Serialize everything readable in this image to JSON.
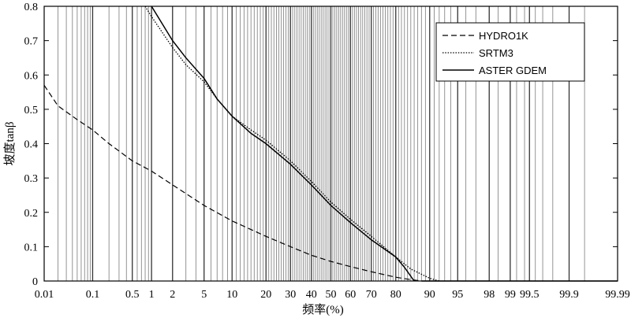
{
  "chart_data": {
    "type": "line",
    "xlabel": "频率(%)",
    "ylabel": "坡度tanβ",
    "x_scale": "normal-probability",
    "x_ticks": [
      0.01,
      0.1,
      0.5,
      1,
      2,
      5,
      10,
      20,
      30,
      40,
      50,
      60,
      70,
      80,
      90,
      95,
      98,
      99,
      99.5,
      99.9,
      99.99
    ],
    "x_tick_labels": [
      "0.01",
      "0.1",
      "0.5",
      "1",
      "2",
      "5",
      "10",
      "20",
      "30",
      "40",
      "50",
      "60",
      "70",
      "80",
      "90",
      "95",
      "98",
      "99",
      "99.5",
      "99.9",
      "99.99"
    ],
    "y_ticks": [
      0,
      0.1,
      0.2,
      0.3,
      0.4,
      0.5,
      0.6,
      0.7,
      0.8
    ],
    "y_tick_labels": [
      "0",
      "0.1",
      "0.2",
      "0.3",
      "0.4",
      "0.5",
      "0.6",
      "0.7",
      "0.8"
    ],
    "ylim": [
      0,
      0.8
    ],
    "xlim": [
      0.01,
      99.99
    ],
    "grid": "vertical",
    "legend_position": "top-right",
    "series": [
      {
        "name": "HYDRO1K",
        "style": "dashed",
        "x": [
          0.01,
          0.02,
          0.05,
          0.1,
          0.2,
          0.5,
          1,
          2,
          5,
          10,
          20,
          30,
          40,
          50,
          60,
          70,
          80,
          85,
          88
        ],
        "y": [
          0.57,
          0.51,
          0.47,
          0.44,
          0.4,
          0.35,
          0.32,
          0.28,
          0.22,
          0.175,
          0.13,
          0.1,
          0.075,
          0.057,
          0.042,
          0.027,
          0.011,
          0.004,
          0.0
        ]
      },
      {
        "name": "SRTM3",
        "style": "dotted",
        "x": [
          0.8,
          1,
          2,
          3,
          5,
          7,
          10,
          15,
          20,
          30,
          40,
          50,
          60,
          70,
          80,
          85,
          90,
          92
        ],
        "y": [
          0.8,
          0.77,
          0.68,
          0.63,
          0.58,
          0.53,
          0.48,
          0.44,
          0.41,
          0.35,
          0.29,
          0.23,
          0.18,
          0.13,
          0.07,
          0.035,
          0.008,
          0.0
        ]
      },
      {
        "name": "ASTER  GDEM",
        "style": "solid",
        "x": [
          1,
          2,
          3,
          5,
          7,
          10,
          15,
          20,
          30,
          40,
          50,
          60,
          70,
          80,
          83,
          86
        ],
        "y": [
          0.8,
          0.7,
          0.65,
          0.59,
          0.53,
          0.48,
          0.43,
          0.4,
          0.34,
          0.28,
          0.22,
          0.17,
          0.12,
          0.07,
          0.04,
          0.0
        ]
      }
    ]
  }
}
